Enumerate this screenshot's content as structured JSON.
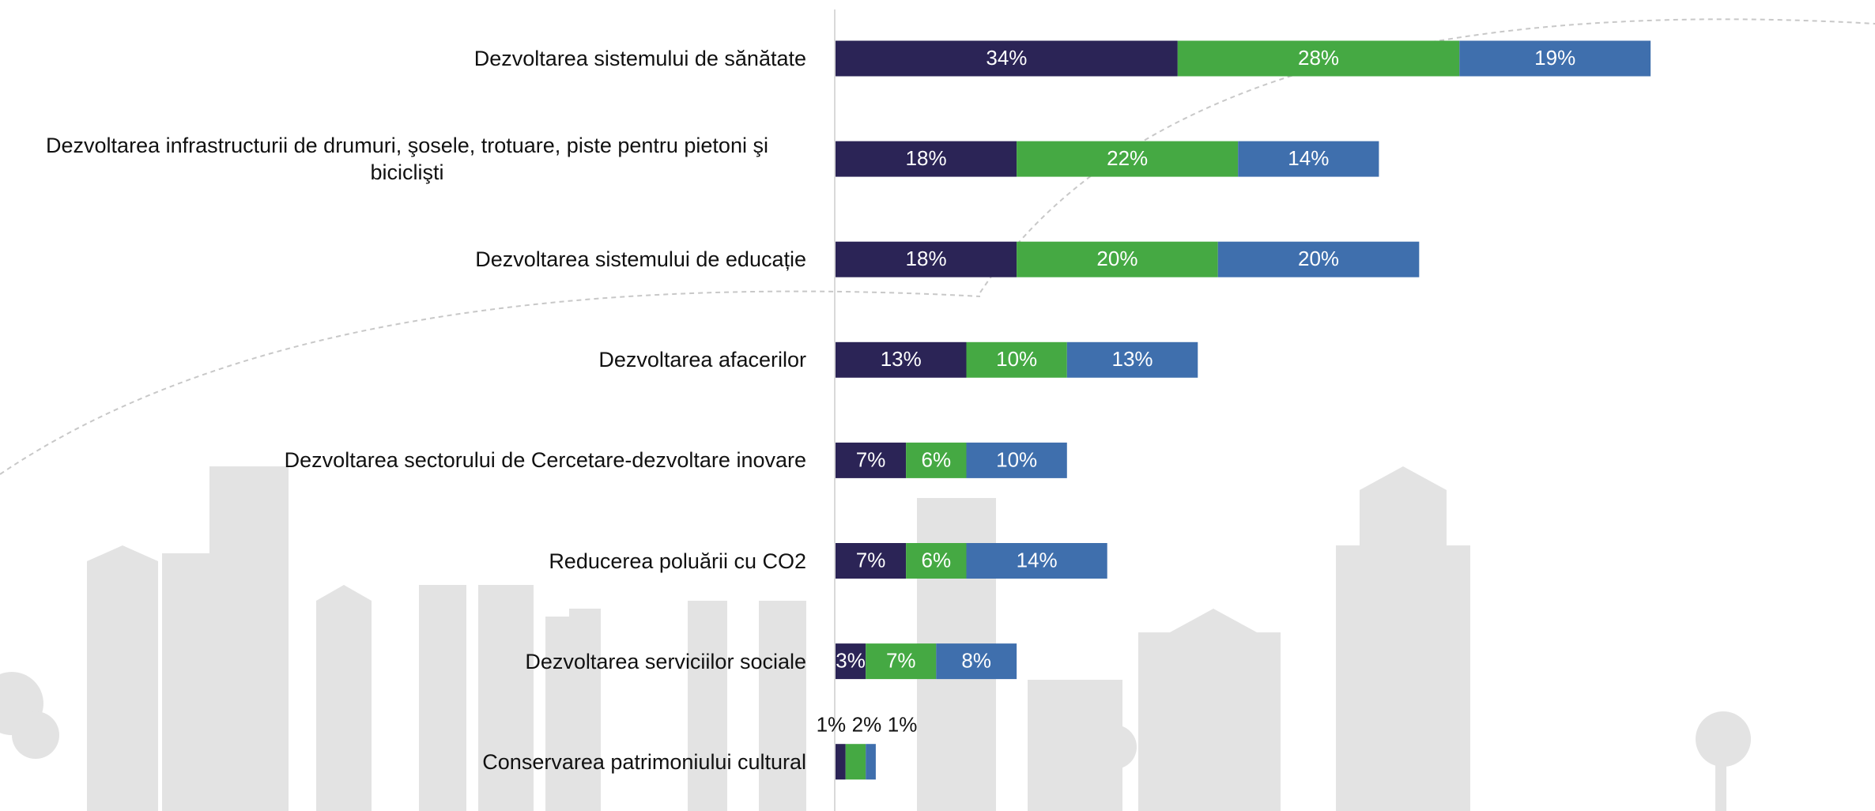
{
  "chart_data": {
    "type": "stacked-bar-horizontal",
    "categories": [
      "Dezvoltarea sistemului de sănătate",
      "Dezvoltarea infrastructurii de drumuri, şosele, trotuare, piste pentru pietoni şi biciclişti",
      "Dezvoltarea sistemului de educație",
      "Dezvoltarea afacerilor",
      "Dezvoltarea sectorului de Cercetare-dezvoltare inovare",
      "Reducerea poluării cu CO2",
      "Dezvoltarea serviciilor sociale",
      "Conservarea patrimoniului cultural"
    ],
    "series": [
      {
        "color": "#2b2456",
        "values": [
          34,
          18,
          18,
          13,
          7,
          7,
          3,
          1
        ],
        "value_labels": [
          "34%",
          "18%",
          "18%",
          "13%",
          "7%",
          "7%",
          "3%",
          "1%"
        ]
      },
      {
        "color": "#45a943",
        "values": [
          28,
          22,
          20,
          10,
          6,
          6,
          7,
          2
        ],
        "value_labels": [
          "28%",
          "22%",
          "20%",
          "10%",
          "6%",
          "6%",
          "7%",
          "2%"
        ]
      },
      {
        "color": "#3f6fad",
        "values": [
          19,
          14,
          20,
          13,
          10,
          14,
          8,
          1
        ],
        "value_labels": [
          "19%",
          "14%",
          "20%",
          "13%",
          "10%",
          "14%",
          "8%",
          "1%"
        ]
      }
    ]
  }
}
